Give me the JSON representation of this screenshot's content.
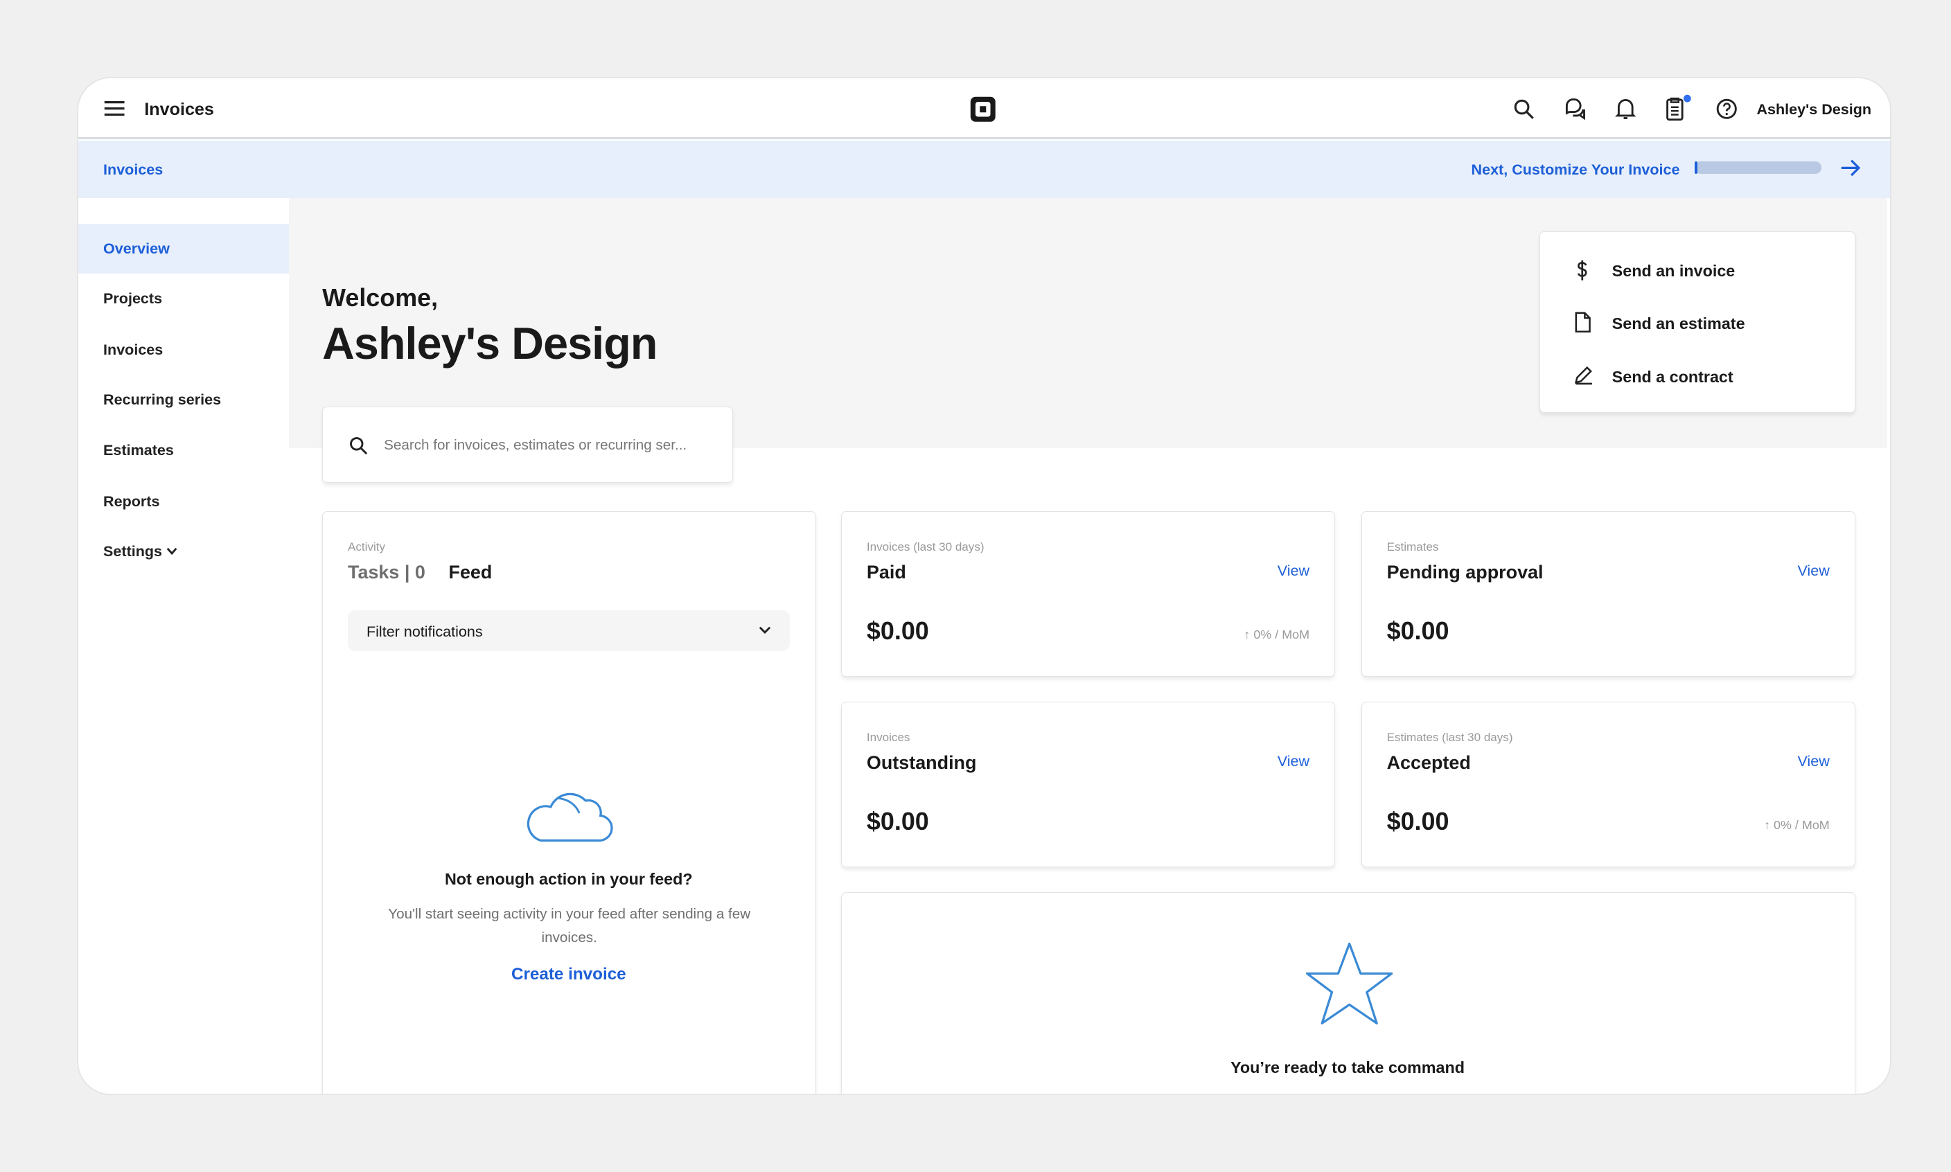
{
  "header": {
    "title": "Invoices",
    "account": "Ashley's Design"
  },
  "banner": {
    "breadcrumb": "Invoices",
    "next_step": "Next, Customize Your Invoice",
    "progress": 0.02
  },
  "sidebar": {
    "items": [
      {
        "label": "Overview"
      },
      {
        "label": "Projects"
      },
      {
        "label": "Invoices"
      },
      {
        "label": "Recurring series"
      },
      {
        "label": "Estimates"
      },
      {
        "label": "Reports"
      },
      {
        "label": "Settings"
      }
    ]
  },
  "welcome": {
    "greeting": "Welcome,",
    "name": "Ashley's Design"
  },
  "search": {
    "placeholder": "Search for invoices, estimates or recurring ser..."
  },
  "actions": [
    {
      "label": "Send an invoice",
      "icon": "dollar-icon"
    },
    {
      "label": "Send an estimate",
      "icon": "document-icon"
    },
    {
      "label": "Send a contract",
      "icon": "pen-icon"
    }
  ],
  "activity": {
    "label": "Activity",
    "tasks_tab": "Tasks | 0",
    "feed_tab": "Feed",
    "filter": "Filter notifications",
    "empty_title": "Not enough action in your feed?",
    "empty_text": "You'll start seeing activity in your feed after sending a few invoices.",
    "create": "Create invoice"
  },
  "stats": [
    {
      "label": "Invoices (last 30 days)",
      "title": "Paid",
      "amount": "$0.00",
      "view": "View",
      "mom": "0% / MoM"
    },
    {
      "label": "Estimates",
      "title": "Pending approval",
      "amount": "$0.00",
      "view": "View"
    },
    {
      "label": "Invoices",
      "title": "Outstanding",
      "amount": "$0.00",
      "view": "View"
    },
    {
      "label": "Estimates (last 30 days)",
      "title": "Accepted",
      "amount": "$0.00",
      "view": "View",
      "mom": "0% / MoM"
    }
  ],
  "command": {
    "title": "You’re ready to take command"
  },
  "colors": {
    "accent": "#1d5fd8",
    "banner": "#e7effc",
    "icon_blue": "#3b8ad6"
  }
}
